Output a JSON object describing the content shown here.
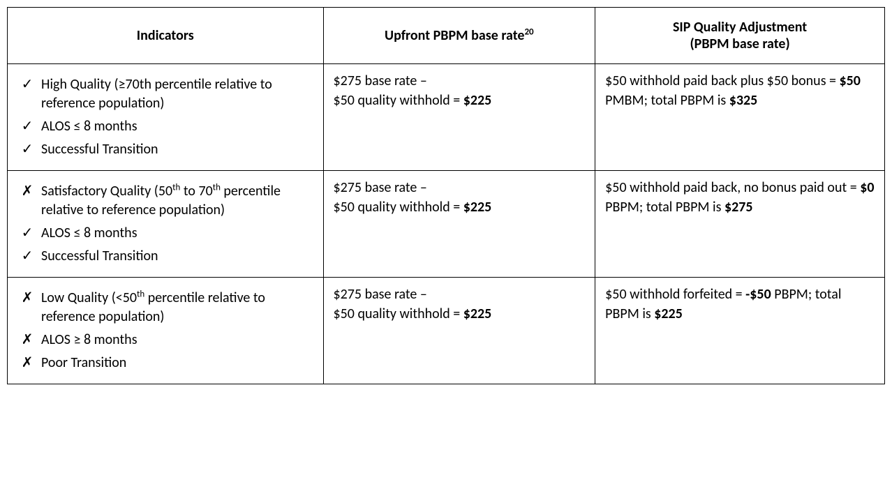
{
  "headers": {
    "col1": "Indicators",
    "col2_pre": "Upfront PBPM base rate",
    "col2_sup": "20",
    "col3_line1": "SIP Quality Adjustment",
    "col3_line2": "(PBPM base rate)"
  },
  "marks": {
    "check": "✓",
    "cross": "✗"
  },
  "rows": [
    {
      "indicators": [
        {
          "mark": "check",
          "text": "High Quality (≥70th percentile relative to reference population)"
        },
        {
          "mark": "check",
          "text": "ALOS ≤ 8 months"
        },
        {
          "mark": "check",
          "text": "Successful Transition"
        }
      ],
      "upfront": {
        "line1": "$275 base rate –",
        "line2_pre": "$50 quality withhold = ",
        "line2_bold": "$225"
      },
      "sip": {
        "seg1": "$50 withhold paid back plus $50 bonus = ",
        "bold1": "$50",
        "seg2": " PMBM; total PBPM is ",
        "bold2": "$325"
      }
    },
    {
      "indicators": [
        {
          "mark": "cross",
          "pre": "Satisfactory Quality (50",
          "sup1": "th",
          "mid": " to 70",
          "sup2": "th",
          "post": " percentile relative to reference population)"
        },
        {
          "mark": "check",
          "text": "ALOS ≤ 8 months"
        },
        {
          "mark": "check",
          "text": "Successful Transition"
        }
      ],
      "upfront": {
        "line1": "$275 base rate –",
        "line2_pre": "$50 quality withhold = ",
        "line2_bold": "$225"
      },
      "sip": {
        "seg1": "$50 withhold paid back, no bonus paid out = ",
        "bold1": "$0",
        "seg2": " PBPM; total PBPM is ",
        "bold2": "$275"
      }
    },
    {
      "indicators": [
        {
          "mark": "cross",
          "pre": "Low Quality (<50",
          "sup1": "th",
          "post": " percentile relative to reference population)"
        },
        {
          "mark": "cross",
          "text": "ALOS ≥ 8 months"
        },
        {
          "mark": "cross",
          "text": "Poor Transition"
        }
      ],
      "upfront": {
        "line1": "$275 base rate –",
        "line2_pre": "$50 quality withhold = ",
        "line2_bold": "$225"
      },
      "sip": {
        "seg1": "$50 withhold forfeited = ",
        "bold1": "-$50",
        "seg2": " PBPM; total PBPM is ",
        "bold2": "$225"
      }
    }
  ]
}
